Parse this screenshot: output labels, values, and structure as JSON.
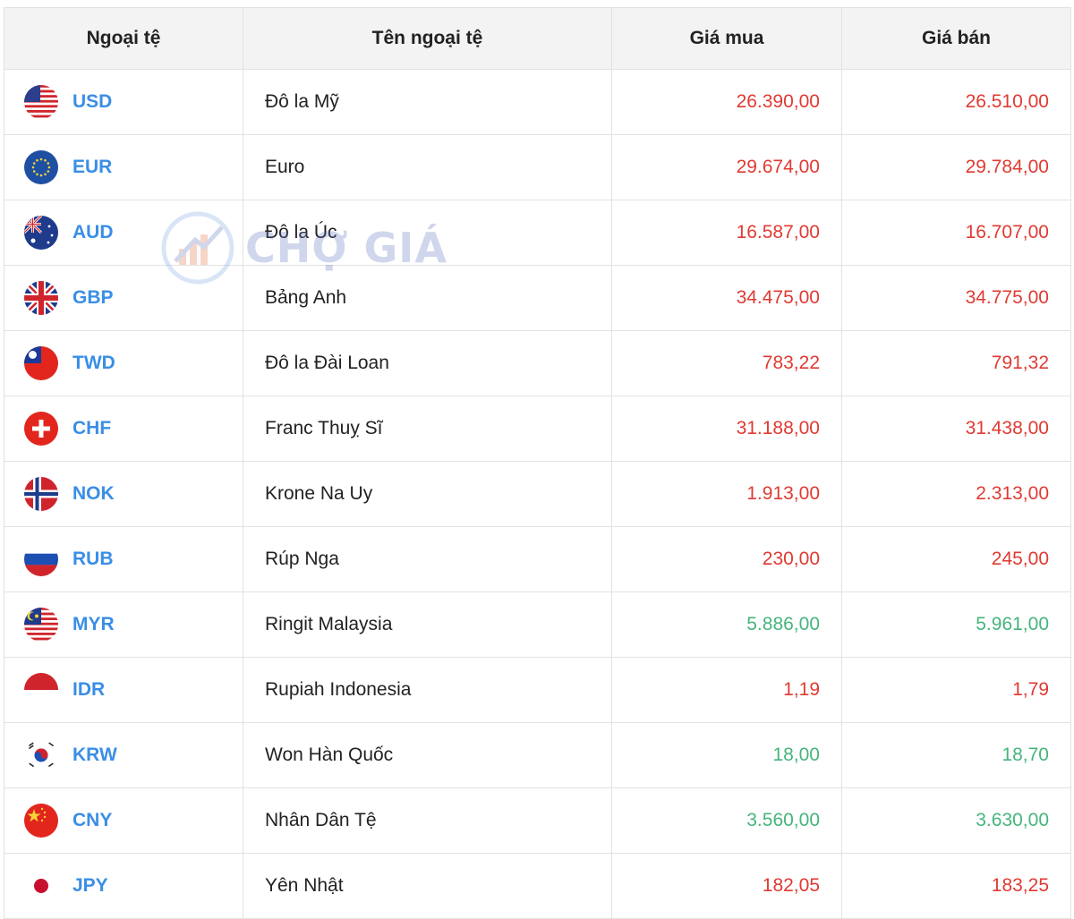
{
  "header": {
    "code_label": "Ngoại tệ",
    "name_label": "Tên ngoại tệ",
    "buy_label": "Giá mua",
    "sell_label": "Giá bán"
  },
  "colors": {
    "down": "#e03a32",
    "up": "#45b57c",
    "code": "#3a8ee6"
  },
  "watermark": {
    "text": "CHỢ GIÁ"
  },
  "rows": [
    {
      "code": "USD",
      "name": "Đô la Mỹ",
      "buy": "26.390,00",
      "sell": "26.510,00",
      "trend": "down",
      "flag": "us-flag-icon"
    },
    {
      "code": "EUR",
      "name": "Euro",
      "buy": "29.674,00",
      "sell": "29.784,00",
      "trend": "down",
      "flag": "eu-flag-icon"
    },
    {
      "code": "AUD",
      "name": "Đô la Úc",
      "buy": "16.587,00",
      "sell": "16.707,00",
      "trend": "down",
      "flag": "au-flag-icon"
    },
    {
      "code": "GBP",
      "name": "Bảng Anh",
      "buy": "34.475,00",
      "sell": "34.775,00",
      "trend": "down",
      "flag": "uk-flag-icon"
    },
    {
      "code": "TWD",
      "name": "Đô la Đài Loan",
      "buy": "783,22",
      "sell": "791,32",
      "trend": "down",
      "flag": "tw-flag-icon"
    },
    {
      "code": "CHF",
      "name": "Franc Thuỵ Sĩ",
      "buy": "31.188,00",
      "sell": "31.438,00",
      "trend": "down",
      "flag": "ch-flag-icon"
    },
    {
      "code": "NOK",
      "name": "Krone Na Uy",
      "buy": "1.913,00",
      "sell": "2.313,00",
      "trend": "down",
      "flag": "no-flag-icon"
    },
    {
      "code": "RUB",
      "name": "Rúp Nga",
      "buy": "230,00",
      "sell": "245,00",
      "trend": "down",
      "flag": "ru-flag-icon"
    },
    {
      "code": "MYR",
      "name": "Ringit Malaysia",
      "buy": "5.886,00",
      "sell": "5.961,00",
      "trend": "up",
      "flag": "my-flag-icon"
    },
    {
      "code": "IDR",
      "name": "Rupiah Indonesia",
      "buy": "1,19",
      "sell": "1,79",
      "trend": "down",
      "flag": "id-flag-icon"
    },
    {
      "code": "KRW",
      "name": "Won Hàn Quốc",
      "buy": "18,00",
      "sell": "18,70",
      "trend": "up",
      "flag": "kr-flag-icon"
    },
    {
      "code": "CNY",
      "name": "Nhân Dân Tệ",
      "buy": "3.560,00",
      "sell": "3.630,00",
      "trend": "up",
      "flag": "cn-flag-icon"
    },
    {
      "code": "JPY",
      "name": "Yên Nhật",
      "buy": "182,05",
      "sell": "183,25",
      "trend": "down",
      "flag": "jp-flag-icon"
    }
  ]
}
